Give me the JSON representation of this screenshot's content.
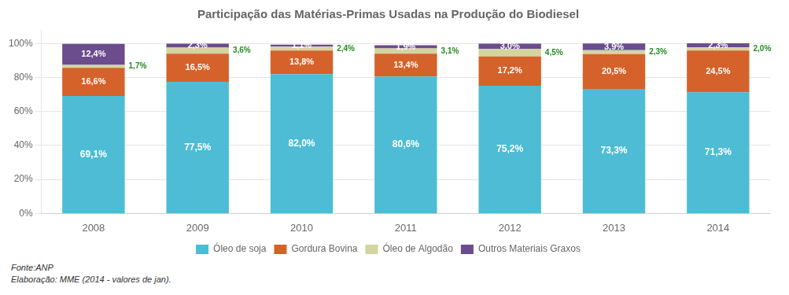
{
  "chart_data": {
    "type": "bar",
    "stacked": true,
    "title": "Participação das Matérias-Primas Usadas na Produção do Biodiesel",
    "categories": [
      "2008",
      "2009",
      "2010",
      "2011",
      "2012",
      "2013",
      "2014"
    ],
    "series": [
      {
        "name": "Óleo de soja",
        "color": "#4dbcd4",
        "values": [
          69.1,
          77.5,
          82.0,
          80.6,
          75.2,
          73.3,
          71.3
        ],
        "value_labels": [
          "69,1%",
          "77,5%",
          "82,0%",
          "80,6%",
          "75,2%",
          "73,3%",
          "71,3%"
        ]
      },
      {
        "name": "Gordura Bovina",
        "color": "#d4622a",
        "values": [
          16.6,
          16.5,
          13.8,
          13.4,
          17.2,
          20.5,
          24.5
        ],
        "value_labels": [
          "16,6%",
          "16,5%",
          "13,8%",
          "13,4%",
          "17,2%",
          "20,5%",
          "24,5%"
        ]
      },
      {
        "name": "Óleo de Algodão",
        "color": "#d4d4a0",
        "values": [
          1.7,
          3.6,
          2.4,
          3.1,
          4.5,
          2.3,
          2.0
        ],
        "value_labels": [
          "1,7%",
          "3,6%",
          "2,4%",
          "3,1%",
          "4,5%",
          "2,3%",
          "2,0%"
        ]
      },
      {
        "name": "Outros Materiais Graxos",
        "color": "#6b4c8c",
        "values": [
          12.4,
          2.3,
          1.1,
          1.9,
          3.0,
          3.9,
          2.3
        ],
        "value_labels": [
          "12,4%",
          "2,3%",
          "1,1%",
          "1,9%",
          "3,0%",
          "3,9%",
          "2,3%"
        ]
      }
    ],
    "ylim": [
      0,
      108
    ],
    "yticks": [
      {
        "value": 0,
        "label": "0%"
      },
      {
        "value": 20,
        "label": "20%"
      },
      {
        "value": 40,
        "label": "40%"
      },
      {
        "value": 60,
        "label": "60%"
      },
      {
        "value": 80,
        "label": "80%"
      },
      {
        "value": 100,
        "label": "100%"
      }
    ],
    "grid": true,
    "legend": "bottom",
    "data_labels": true,
    "annotations": [
      "Fonte:ANP",
      "Elaboração: MME (2014 - valores de jan)."
    ]
  }
}
